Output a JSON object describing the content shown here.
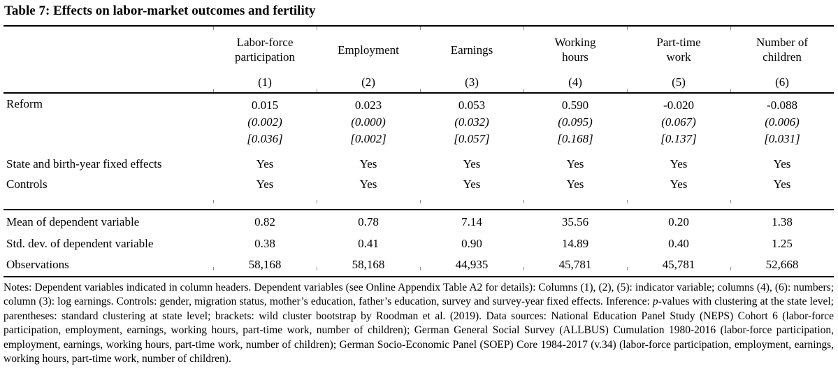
{
  "title": "Table 7: Effects on labor-market outcomes and fertility",
  "table": {
    "columns": [
      {
        "lines": [
          "Labor-force",
          "participation"
        ],
        "number": "(1)"
      },
      {
        "lines": [
          "Employment",
          ""
        ],
        "number": "(2)"
      },
      {
        "lines": [
          "Earnings",
          ""
        ],
        "number": "(3)"
      },
      {
        "lines": [
          "Working",
          "hours"
        ],
        "number": "(4)"
      },
      {
        "lines": [
          "Part-time",
          "work"
        ],
        "number": "(5)"
      },
      {
        "lines": [
          "Number of",
          "children"
        ],
        "number": "(6)"
      }
    ],
    "rows": {
      "reform": {
        "label": "Reform",
        "coefficients": [
          "0.015",
          "0.023",
          "0.053",
          "0.590",
          "-0.020",
          "-0.088"
        ],
        "std_errors": [
          "(0.002)",
          "(0.000)",
          "(0.032)",
          "(0.095)",
          "(0.067)",
          "(0.006)"
        ],
        "wild_bootstrap": [
          "[0.036]",
          "[0.002]",
          "[0.057]",
          "[0.168]",
          "[0.137]",
          "[0.031]"
        ]
      },
      "fixed_effects": {
        "label": "State and birth-year fixed effects",
        "values": [
          "Yes",
          "Yes",
          "Yes",
          "Yes",
          "Yes",
          "Yes"
        ]
      },
      "controls": {
        "label": "Controls",
        "values": [
          "Yes",
          "Yes",
          "Yes",
          "Yes",
          "Yes",
          "Yes"
        ]
      },
      "mean": {
        "label": "Mean of dependent variable",
        "values": [
          "0.82",
          "0.78",
          "7.14",
          "35.56",
          "0.20",
          "1.38"
        ]
      },
      "std_dev": {
        "label": "Std. dev. of dependent variable",
        "values": [
          "0.38",
          "0.41",
          "0.90",
          "14.89",
          "0.40",
          "1.25"
        ]
      },
      "observations": {
        "label": "Observations",
        "values": [
          "58,168",
          "58,168",
          "44,935",
          "45,781",
          "45,781",
          "52,668"
        ]
      }
    }
  },
  "notes": {
    "part1": "Notes: Dependent variables indicated in column headers. Dependent variables (see Online Appendix Table A2 for details): Columns (1), (2), (5): indicator variable; columns (4), (6): numbers; column (3): log earnings. Controls: gender, migration status, mother’s education, father’s education, survey and survey-year fixed effects. Inference: ",
    "p_italic": "p",
    "part2": "-values with clustering at the state level; parentheses: standard clustering at state level; brackets: wild cluster bootstrap by Roodman et al. (2019). Data sources: National Education Panel Study (NEPS) Cohort 6 (labor-force participation, employment, earnings, working hours, part-time work, number of children); German General Social Survey (ALLBUS) Cumulation 1980-2016 (labor-force participation, employment, earnings, working hours, part-time work, number of children); German Socio-Economic Panel (SOEP) Core 1984-2017 (v.34) (labor-force participation, employment, earnings, working hours, part-time work, number of children)."
  }
}
